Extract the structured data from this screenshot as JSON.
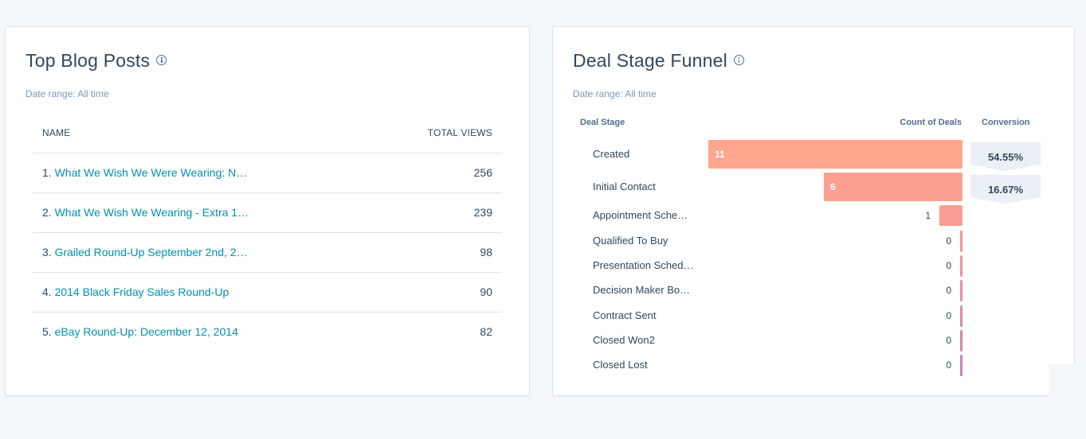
{
  "blog_card": {
    "title": "Top Blog Posts",
    "date_range": "Date range: All time",
    "col_name": "NAME",
    "col_views": "TOTAL VIEWS",
    "rows": [
      {
        "num": "1.",
        "title": "What We Wish We Were Wearing: N…",
        "views": "256"
      },
      {
        "num": "2.",
        "title": "What We Wish We Wearing - Extra 1…",
        "views": "239"
      },
      {
        "num": "3.",
        "title": "Grailed Round-Up September 2nd, 2…",
        "views": "98"
      },
      {
        "num": "4.",
        "title": "2014 Black Friday Sales Round-Up",
        "views": "90"
      },
      {
        "num": "5.",
        "title": "eBay Round-Up: December 12, 2014",
        "views": "82"
      }
    ]
  },
  "funnel_card": {
    "title": "Deal Stage Funnel",
    "date_range": "Date range: All time",
    "col_stage": "Deal Stage",
    "col_count": "Count of Deals",
    "col_conversion": "Conversion",
    "colors": {
      "top": "#fea58e",
      "mid": "#f89a95",
      "bottom": "#c885b5"
    }
  },
  "chart_data": {
    "type": "bar",
    "orientation": "horizontal",
    "title": "Deal Stage Funnel",
    "xlabel": "Count of Deals",
    "ylabel": "Deal Stage",
    "categories": [
      "Created",
      "Initial Contact",
      "Appointment Sche…",
      "Qualified To Buy",
      "Presentation Sched…",
      "Decision Maker Bo…",
      "Contract Sent",
      "Closed Won2",
      "Closed Lost"
    ],
    "values": [
      11,
      6,
      1,
      0,
      0,
      0,
      0,
      0,
      0
    ],
    "labels": [
      "11",
      "6",
      "1",
      "0",
      "0",
      "0",
      "0",
      "0",
      "0"
    ],
    "conversion": [
      "54.55%",
      "16.67%"
    ],
    "xlim": [
      0,
      11
    ]
  }
}
